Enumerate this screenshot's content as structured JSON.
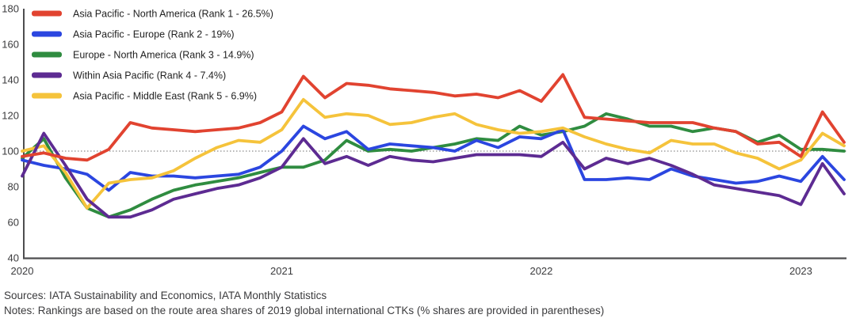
{
  "figure": {
    "sources_line": "Sources: IATA Sustainability and Economics, IATA Monthly Statistics",
    "notes_line": "Notes: Rankings are based on the route area shares of 2019 global international CTKs (% shares are provided in parentheses)"
  },
  "chart_data": {
    "type": "line",
    "title": "",
    "x_unit": "month",
    "x_start": "2020-01",
    "x_end": "2023-03",
    "n_points": 39,
    "x_tick_labels": [
      "2020",
      "2021",
      "2022",
      "2023"
    ],
    "x_tick_month_index": [
      0,
      12,
      24,
      36
    ],
    "ylim": [
      40,
      180
    ],
    "y_ticks": [
      40,
      60,
      80,
      100,
      120,
      140,
      160,
      180
    ],
    "baseline_value": 100,
    "baseline_style": "dotted",
    "grid": false,
    "legend_position": "top-left-inside",
    "axis_color": "#4d4d4f",
    "baseline_color": "#8c8c8c",
    "draw_order": [
      2,
      1,
      4,
      3,
      0
    ],
    "series": [
      {
        "name": "Asia Pacific - North America (Rank 1 - 26.5%)",
        "slug": "asia-pacific-north-america",
        "color": "#E14330",
        "values": [
          97,
          99,
          96,
          95,
          101,
          116,
          113,
          112,
          111,
          112,
          113,
          116,
          122,
          142,
          130,
          138,
          137,
          135,
          134,
          133,
          131,
          132,
          130,
          134,
          128,
          143,
          119,
          118,
          117,
          116,
          116,
          116,
          113,
          111,
          104,
          105,
          97,
          122,
          105
        ]
      },
      {
        "name": "Asia Pacific - Europe (Rank 2 - 19%)",
        "slug": "asia-pacific-europe",
        "color": "#2B46E0",
        "values": [
          95,
          92,
          90,
          87,
          78,
          88,
          86,
          86,
          85,
          86,
          87,
          91,
          100,
          114,
          107,
          111,
          101,
          104,
          103,
          102,
          100,
          106,
          102,
          108,
          107,
          112,
          84,
          84,
          85,
          84,
          90,
          86,
          84,
          82,
          83,
          86,
          83,
          97,
          84
        ]
      },
      {
        "name": "Europe - North America (Rank 3 - 14.9%)",
        "slug": "europe-north-america",
        "color": "#2F8C40",
        "values": [
          96,
          107,
          85,
          68,
          63,
          67,
          73,
          78,
          81,
          83,
          85,
          88,
          91,
          91,
          95,
          106,
          100,
          101,
          100,
          102,
          104,
          107,
          106,
          114,
          109,
          111,
          114,
          121,
          118,
          114,
          114,
          111,
          113,
          111,
          105,
          109,
          101,
          101,
          100
        ]
      },
      {
        "name": "Within Asia Pacific (Rank 4 - 7.4%)",
        "slug": "within-asia-pacific",
        "color": "#5D2B92",
        "values": [
          86,
          110,
          92,
          73,
          63,
          63,
          67,
          73,
          76,
          79,
          81,
          85,
          91,
          107,
          93,
          97,
          92,
          97,
          95,
          94,
          96,
          98,
          98,
          98,
          97,
          105,
          90,
          96,
          93,
          96,
          92,
          87,
          81,
          79,
          77,
          75,
          70,
          93,
          76
        ]
      },
      {
        "name": "Asia Pacific - Middle East (Rank 5 - 6.9%)",
        "slug": "asia-pacific-middle-east",
        "color": "#F5C33B",
        "values": [
          100,
          103,
          88,
          68,
          82,
          84,
          85,
          89,
          96,
          102,
          106,
          105,
          112,
          129,
          119,
          121,
          120,
          115,
          116,
          119,
          121,
          115,
          112,
          110,
          111,
          113,
          108,
          104,
          101,
          99,
          106,
          104,
          104,
          99,
          96,
          90,
          95,
          110,
          103
        ]
      }
    ]
  }
}
